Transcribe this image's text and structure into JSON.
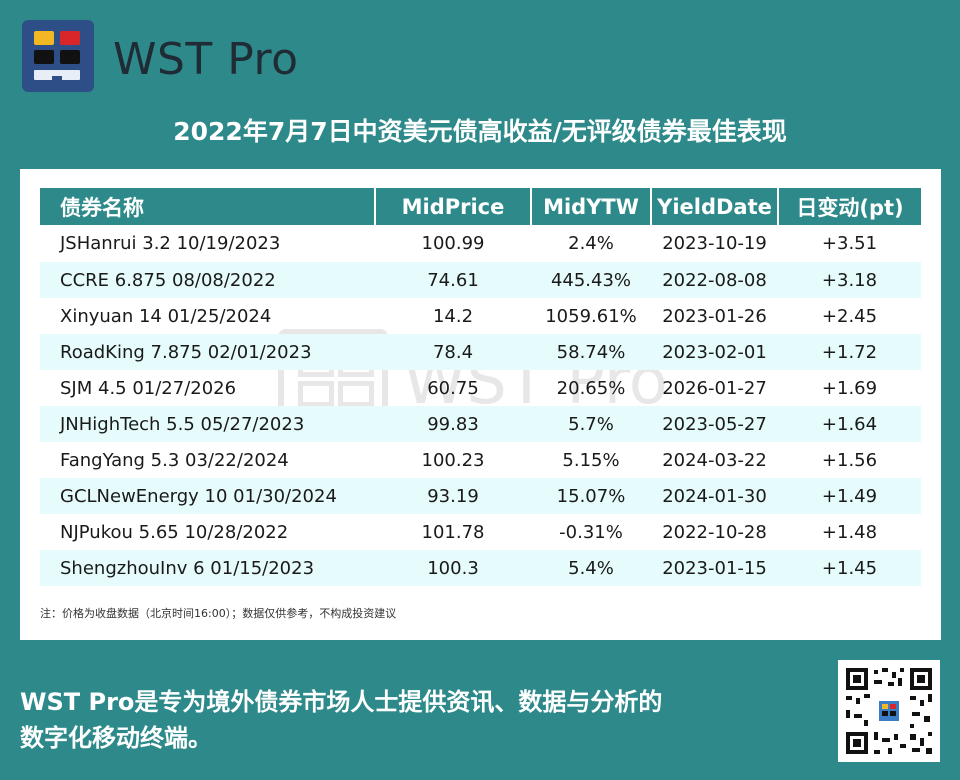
{
  "brand": {
    "name": "WST Pro"
  },
  "title": "2022年7月7日中资美元债高收益/无评级债券最佳表现",
  "table": {
    "headers": [
      "债券名称",
      "MidPrice",
      "MidYTW",
      "YieldDate",
      "日变动(pt)"
    ],
    "rows": [
      [
        "JSHanrui 3.2 10/19/2023",
        "100.99",
        "2.4%",
        "2023-10-19",
        "+3.51"
      ],
      [
        "CCRE 6.875 08/08/2022",
        "74.61",
        "445.43%",
        "2022-08-08",
        "+3.18"
      ],
      [
        "Xinyuan 14 01/25/2024",
        "14.2",
        "1059.61%",
        "2023-01-26",
        "+2.45"
      ],
      [
        "RoadKing 7.875 02/01/2023",
        "78.4",
        "58.74%",
        "2023-02-01",
        "+1.72"
      ],
      [
        "SJM 4.5 01/27/2026",
        "60.75",
        "20.65%",
        "2026-01-27",
        "+1.69"
      ],
      [
        "JNHighTech 5.5 05/27/2023",
        "99.83",
        "5.7%",
        "2023-05-27",
        "+1.64"
      ],
      [
        "FangYang 5.3 03/22/2024",
        "100.23",
        "5.15%",
        "2024-03-22",
        "+1.56"
      ],
      [
        "GCLNewEnergy 10 01/30/2024",
        "93.19",
        "15.07%",
        "2024-01-30",
        "+1.49"
      ],
      [
        "NJPukou 5.65 10/28/2022",
        "101.78",
        "-0.31%",
        "2022-10-28",
        "+1.48"
      ],
      [
        "ShengzhouInv 6 01/15/2023",
        "100.3",
        "5.4%",
        "2023-01-15",
        "+1.45"
      ]
    ]
  },
  "watermark": "WST Pro",
  "note": "注：价格为收盘数据（北京时间16:00）；数据仅供参考，不构成投资建议",
  "footer": {
    "line1": "WST Pro是专为境外债券市场人士提供资讯、数据与分析的",
    "line2": "数字化移动终端。"
  },
  "colors": {
    "background": "#2e8a8a",
    "header": "#2e8a8a",
    "alt_row": "#e6fbfb",
    "logo_bg": "#2d4e86"
  },
  "icons": {
    "logo": "wst-pro-logo-icon",
    "qr": "qr-code-icon"
  }
}
